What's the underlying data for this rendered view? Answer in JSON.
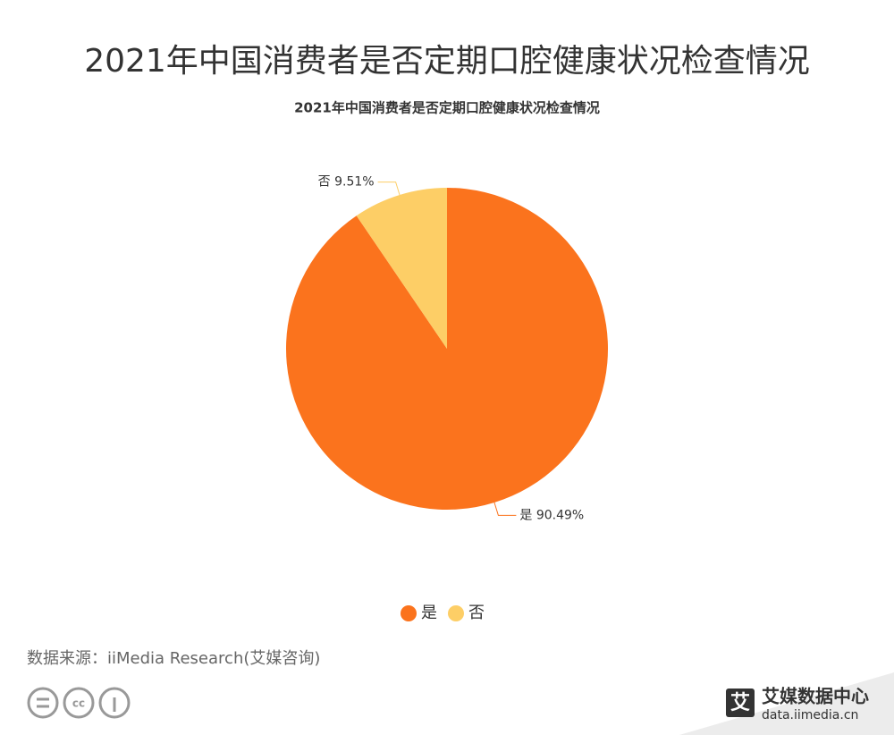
{
  "header": {
    "title": "2021年中国消费者是否定期口腔健康状况检查情况"
  },
  "chart_data": {
    "type": "pie",
    "title": "2021年中国消费者是否定期口腔健康状况检查情况",
    "categories": [
      "是",
      "否"
    ],
    "values": [
      90.49,
      9.51
    ],
    "value_labels": [
      "是 90.49%",
      "否 9.51%"
    ],
    "colors": [
      "#fb731d",
      "#fdce66"
    ],
    "legend": "bottom"
  },
  "footer": {
    "source": "数据来源：iiMedia Research(艾媒咨询)",
    "brand": "艾媒数据中心",
    "url": "data.iimedia.cn"
  }
}
